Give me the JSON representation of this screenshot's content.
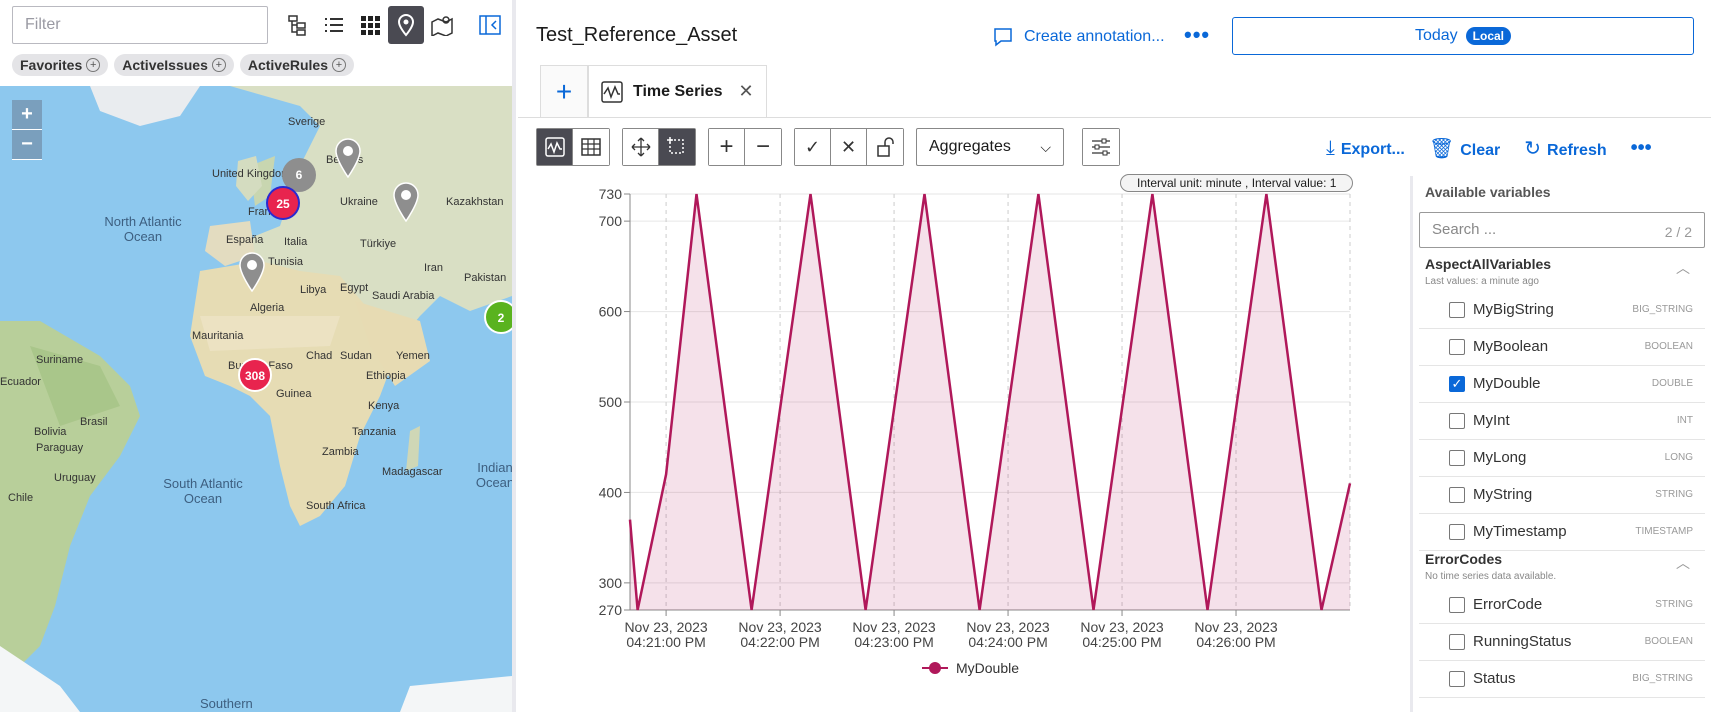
{
  "left_panel": {
    "filter_placeholder": "Filter",
    "view_icons": [
      "hierarchy-icon",
      "list-icon",
      "grid-icon",
      "map-pin-icon",
      "map-icon",
      "collapse-panel-icon"
    ],
    "chips": [
      {
        "label": "Favorites"
      },
      {
        "label": "ActiveIssues"
      },
      {
        "label": "ActiveRules"
      }
    ],
    "map": {
      "zoom_in": "+",
      "zoom_out": "−",
      "labels": [
        "Sverige",
        "United Kingdom",
        "Belarus",
        "Ukraine",
        "France",
        "Kazakhstan",
        "España",
        "Italia",
        "Türkiye",
        "Tunisia",
        "Iran",
        "Pakistan",
        "Libya",
        "Egypt",
        "Saudi Arabia",
        "Algeria",
        "Mauritania",
        "Chad",
        "Sudan",
        "Yemen",
        "Burkina Faso",
        "Guinea",
        "Ethiopia",
        "Kenya",
        "Tanzania",
        "Zambia",
        "Madagascar",
        "South Africa",
        "Suriname",
        "Brasil",
        "Bolivia",
        "Paraguay",
        "Uruguay",
        "Chile",
        "Ecuador"
      ],
      "oceans": [
        "North Atlantic Ocean",
        "South Atlantic Ocean",
        "Indian Ocean",
        "Southern"
      ],
      "clusters": [
        {
          "count": "6"
        },
        {
          "count": "25"
        },
        {
          "count": "308"
        },
        {
          "count": "2"
        }
      ]
    }
  },
  "header": {
    "asset_title": "Test_Reference_Asset",
    "create_annotation": "Create annotation...",
    "more": "•••",
    "today_label": "Today",
    "local_badge": "Local"
  },
  "tabs": {
    "add": "+",
    "active_label": "Time Series",
    "close": "✕"
  },
  "toolbar": {
    "aggregates_label": "Aggregates",
    "export_label": "Export...",
    "clear_label": "Clear",
    "refresh_label": "Refresh",
    "more": "•••"
  },
  "chart_data": {
    "type": "line",
    "interval_note": "Interval unit: minute , Interval value: 1",
    "series": [
      {
        "name": "MyDouble",
        "color": "#b0185a",
        "points": [
          [
            "04:20:41",
            370
          ],
          [
            "04:20:45",
            270
          ],
          [
            "04:21:00",
            420
          ],
          [
            "04:21:16",
            730
          ],
          [
            "04:21:45",
            270
          ],
          [
            "04:22:16",
            730
          ],
          [
            "04:22:45",
            270
          ],
          [
            "04:23:16",
            730
          ],
          [
            "04:23:45",
            270
          ],
          [
            "04:24:16",
            730
          ],
          [
            "04:24:45",
            270
          ],
          [
            "04:25:16",
            730
          ],
          [
            "04:25:45",
            270
          ],
          [
            "04:26:16",
            730
          ],
          [
            "04:26:45",
            270
          ],
          [
            "04:27:00",
            410
          ]
        ]
      }
    ],
    "ylim": [
      270,
      730
    ],
    "y_ticks": [
      "730",
      "700",
      "600",
      "500",
      "400",
      "300",
      "270"
    ],
    "x_ticks": [
      {
        "date": "Nov 23, 2023",
        "time": "04:21:00 PM"
      },
      {
        "date": "Nov 23, 2023",
        "time": "04:22:00 PM"
      },
      {
        "date": "Nov 23, 2023",
        "time": "04:23:00 PM"
      },
      {
        "date": "Nov 23, 2023",
        "time": "04:24:00 PM"
      },
      {
        "date": "Nov 23, 2023",
        "time": "04:25:00 PM"
      },
      {
        "date": "Nov 23, 2023",
        "time": "04:26:00 PM"
      }
    ],
    "grid": true,
    "legend": "bottom"
  },
  "variables": {
    "title": "Available variables",
    "search_placeholder": "Search ...",
    "count": "2 / 2",
    "groups": [
      {
        "name": "AspectAllVariables",
        "sub": "Last values: a minute ago",
        "items": [
          {
            "name": "MyBigString",
            "type": "BIG_STRING",
            "checked": false
          },
          {
            "name": "MyBoolean",
            "type": "BOOLEAN",
            "checked": false
          },
          {
            "name": "MyDouble",
            "type": "DOUBLE",
            "checked": true
          },
          {
            "name": "MyInt",
            "type": "INT",
            "checked": false
          },
          {
            "name": "MyLong",
            "type": "LONG",
            "checked": false
          },
          {
            "name": "MyString",
            "type": "STRING",
            "checked": false
          },
          {
            "name": "MyTimestamp",
            "type": "TIMESTAMP",
            "checked": false
          }
        ]
      },
      {
        "name": "ErrorCodes",
        "sub": "No time series data available.",
        "items": [
          {
            "name": "ErrorCode",
            "type": "STRING",
            "checked": false
          },
          {
            "name": "RunningStatus",
            "type": "BOOLEAN",
            "checked": false
          },
          {
            "name": "Status",
            "type": "BIG_STRING",
            "checked": false
          }
        ]
      }
    ]
  }
}
